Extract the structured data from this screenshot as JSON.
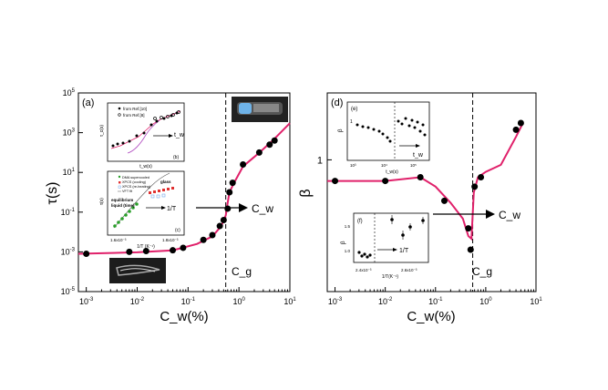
{
  "chart_data": [
    {
      "panel": "left",
      "type": "scatter",
      "panel_label": "(a)",
      "xlabel": "C_w(%)",
      "ylabel": "τ(s)",
      "xscale": "log",
      "yscale": "log",
      "xlim": [
        0.0007,
        10
      ],
      "ylim": [
        1e-05,
        100000
      ],
      "xticks": [
        "10^-3",
        "10^-2",
        "10^-1",
        "10^0",
        "10^1"
      ],
      "yticks": [
        "10^-5",
        "10^-3",
        "10^-1",
        "10^1",
        "10^3",
        "10^5"
      ],
      "annotations": [
        "C_g",
        "C_w"
      ],
      "points": [
        {
          "x": 0.001,
          "y": 0.0008
        },
        {
          "x": 0.007,
          "y": 0.001
        },
        {
          "x": 0.015,
          "y": 0.0011
        },
        {
          "x": 0.05,
          "y": 0.0012
        },
        {
          "x": 0.08,
          "y": 0.0016
        },
        {
          "x": 0.2,
          "y": 0.004
        },
        {
          "x": 0.3,
          "y": 0.007
        },
        {
          "x": 0.42,
          "y": 0.02
        },
        {
          "x": 0.5,
          "y": 0.04
        },
        {
          "x": 0.6,
          "y": 0.15
        },
        {
          "x": 0.65,
          "y": 1
        },
        {
          "x": 0.75,
          "y": 3
        },
        {
          "x": 1.2,
          "y": 25
        },
        {
          "x": 2.5,
          "y": 100
        },
        {
          "x": 4,
          "y": 250
        },
        {
          "x": 5,
          "y": 400
        }
      ],
      "curve": [
        {
          "x": 0.0007,
          "y": 0.0008
        },
        {
          "x": 0.01,
          "y": 0.00095
        },
        {
          "x": 0.05,
          "y": 0.0012
        },
        {
          "x": 0.15,
          "y": 0.0025
        },
        {
          "x": 0.3,
          "y": 0.006
        },
        {
          "x": 0.45,
          "y": 0.02
        },
        {
          "x": 0.55,
          "y": 0.07
        },
        {
          "x": 0.6,
          "y": 0.3
        },
        {
          "x": 0.65,
          "y": 1
        },
        {
          "x": 0.8,
          "y": 3
        },
        {
          "x": 1.2,
          "y": 20
        },
        {
          "x": 2,
          "y": 60
        },
        {
          "x": 3,
          "y": 150
        },
        {
          "x": 5,
          "y": 500
        },
        {
          "x": 10,
          "y": 3000
        }
      ],
      "cg_x": 0.55,
      "inset_b": {
        "label": "(b)",
        "ylabel": "τ_c(s)",
        "xlabel": "t_w(s)",
        "legend": [
          "from Ref.[10]",
          "from Ref.[8]"
        ],
        "arrow_label": "t_w"
      },
      "inset_c": {
        "label": "(c)",
        "ylabel": "τ(s)",
        "xlabel": "1/T (K⁻¹)",
        "xticks": [
          "1.6x10⁻³",
          "1.8x10⁻³"
        ],
        "legend": [
          "DMA supercooled",
          "XPCS (cooling)",
          "XPCS (re-heating)",
          "VFT fit"
        ],
        "text_equilibrium": "equilibrium",
        "text_liquid": "liquid (time)",
        "text_glass": "glass",
        "arrow_label": "1/T"
      }
    },
    {
      "panel": "right",
      "type": "scatter",
      "panel_label": "(d)",
      "xlabel": "C_w(%)",
      "ylabel": "β",
      "xscale": "log",
      "yscale": "log",
      "xlim": [
        0.0007,
        10
      ],
      "xticks": [
        "10^-3",
        "10^-2",
        "10^-1",
        "10^0",
        "10^1"
      ],
      "ytick_label": "1",
      "annotations": [
        "C_g",
        "C_w"
      ],
      "points": [
        {
          "x": 0.001,
          "y": 0.88
        },
        {
          "x": 0.01,
          "y": 0.88
        },
        {
          "x": 0.05,
          "y": 0.9
        },
        {
          "x": 0.15,
          "y": 0.78
        },
        {
          "x": 0.45,
          "y": 0.66
        },
        {
          "x": 0.5,
          "y": 0.58
        },
        {
          "x": 0.6,
          "y": 0.85
        },
        {
          "x": 0.8,
          "y": 0.9
        },
        {
          "x": 4,
          "y": 1.2
        },
        {
          "x": 5,
          "y": 1.25
        }
      ],
      "curve": [
        {
          "x": 0.0007,
          "y": 0.88
        },
        {
          "x": 0.01,
          "y": 0.88
        },
        {
          "x": 0.05,
          "y": 0.9
        },
        {
          "x": 0.1,
          "y": 0.85
        },
        {
          "x": 0.2,
          "y": 0.77
        },
        {
          "x": 0.35,
          "y": 0.7
        },
        {
          "x": 0.45,
          "y": 0.63
        },
        {
          "x": 0.52,
          "y": 0.62
        },
        {
          "x": 0.58,
          "y": 0.82
        },
        {
          "x": 0.7,
          "y": 0.9
        },
        {
          "x": 1,
          "y": 0.93
        },
        {
          "x": 2,
          "y": 0.97
        },
        {
          "x": 4,
          "y": 1.15
        },
        {
          "x": 5.5,
          "y": 1.25
        }
      ],
      "cg_x": 0.55,
      "inset_e": {
        "label": "(e)",
        "ylabel": "β",
        "xlabel": "t_w(s)",
        "yticks": [
          "1"
        ],
        "xticks": [
          "10³",
          "10⁴",
          "10⁵"
        ],
        "arrow_label": "t_w"
      },
      "inset_f": {
        "label": "(f)",
        "ylabel": "β",
        "xlabel": "1/T(K⁻¹)",
        "yticks": [
          "1.0",
          "1.5"
        ],
        "xticks": [
          "2.4x10⁻³",
          "2.6x10⁻³"
        ],
        "arrow_label": "1/T"
      }
    }
  ],
  "colors": {
    "curve": "#e0206a",
    "points": "#000000",
    "green": "#2aa02a",
    "red": "#e03030",
    "blue_pink": "#6fa6e8"
  }
}
